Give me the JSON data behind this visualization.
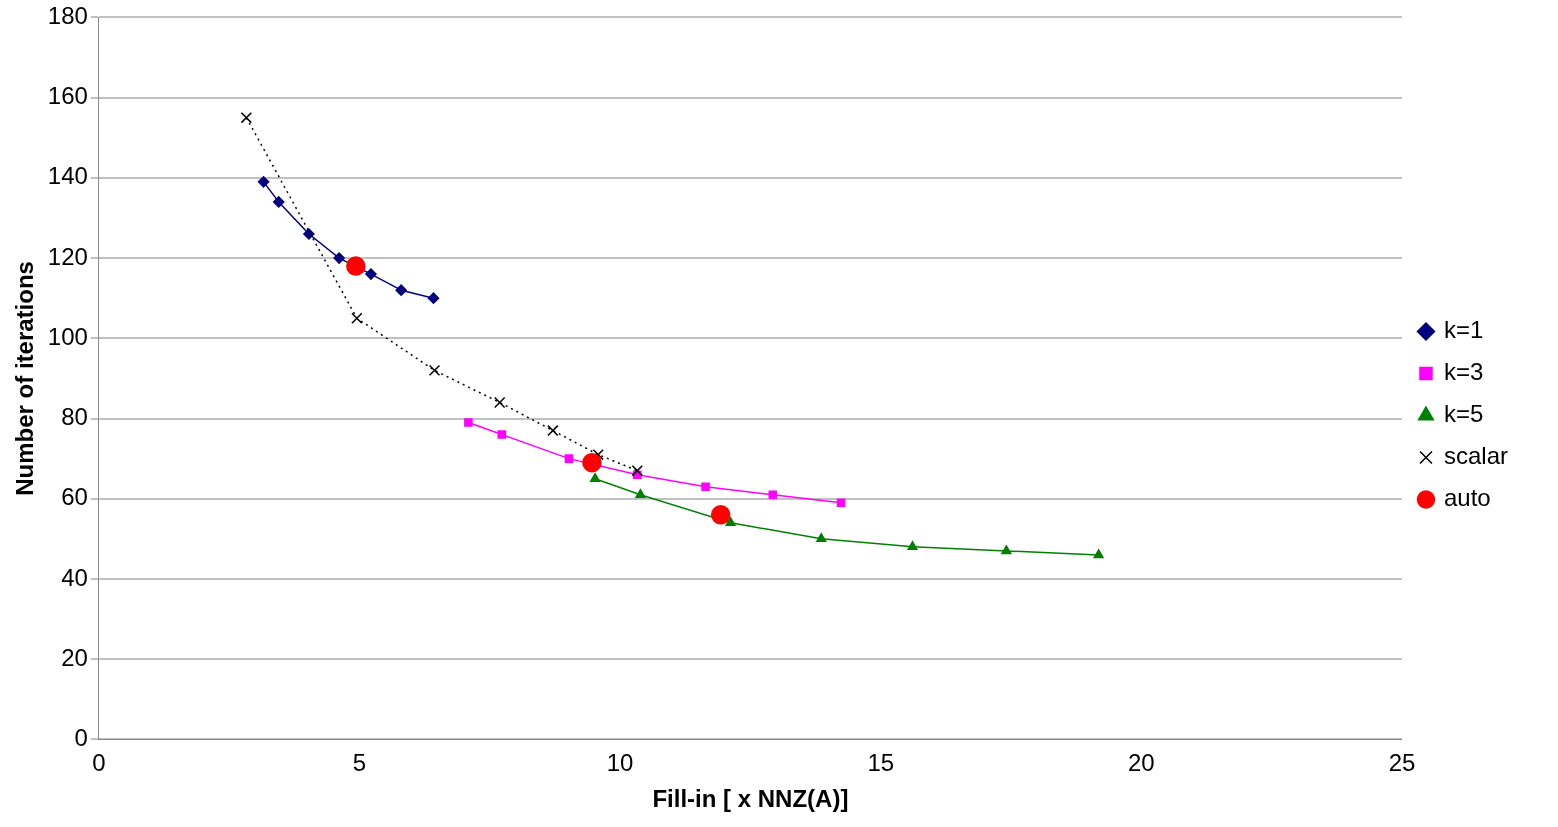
{
  "chart_data": {
    "type": "line",
    "xlabel": "Fill-in [ x NNZ(A)]",
    "ylabel": "Number of iterations",
    "xlim": [
      0,
      25
    ],
    "xticks": [
      0,
      5,
      10,
      15,
      20,
      25
    ],
    "ylim": [
      0,
      180
    ],
    "yticks": [
      0,
      20,
      40,
      60,
      80,
      100,
      120,
      140,
      160,
      180
    ],
    "grid": "y",
    "legend": "right",
    "series": [
      {
        "name": "k=1",
        "color": "#000080",
        "marker": "diamond",
        "line_style": "solid",
        "x": [
          3.16,
          3.45,
          4.03,
          4.61,
          5.22,
          5.8,
          6.42
        ],
        "values": [
          139,
          134,
          126,
          120,
          116,
          112,
          110
        ]
      },
      {
        "name": "k=3",
        "color": "#ff00ff",
        "marker": "square",
        "line_style": "solid",
        "x": [
          7.09,
          7.73,
          9.02,
          10.33,
          11.64,
          12.93,
          14.24
        ],
        "values": [
          79,
          76,
          70,
          66,
          63,
          61,
          59
        ]
      },
      {
        "name": "k=5",
        "color": "#008000",
        "marker": "triangle",
        "line_style": "solid",
        "x": [
          9.52,
          10.39,
          12.12,
          13.86,
          15.61,
          17.41,
          19.18
        ],
        "values": [
          65,
          61,
          54,
          50,
          48,
          47,
          46
        ]
      },
      {
        "name": "scalar",
        "color": "#000000",
        "marker": "cross",
        "line_style": "dotted",
        "x": [
          2.83,
          4.95,
          6.44,
          7.69,
          8.71,
          9.58,
          10.33
        ],
        "values": [
          155,
          105,
          92,
          84,
          77,
          71,
          67
        ]
      },
      {
        "name": "auto",
        "type": "scatter",
        "color": "#ff0000",
        "marker": "circle",
        "x": [
          4.93,
          9.46,
          11.93
        ],
        "values": [
          118,
          69,
          56
        ]
      }
    ]
  }
}
